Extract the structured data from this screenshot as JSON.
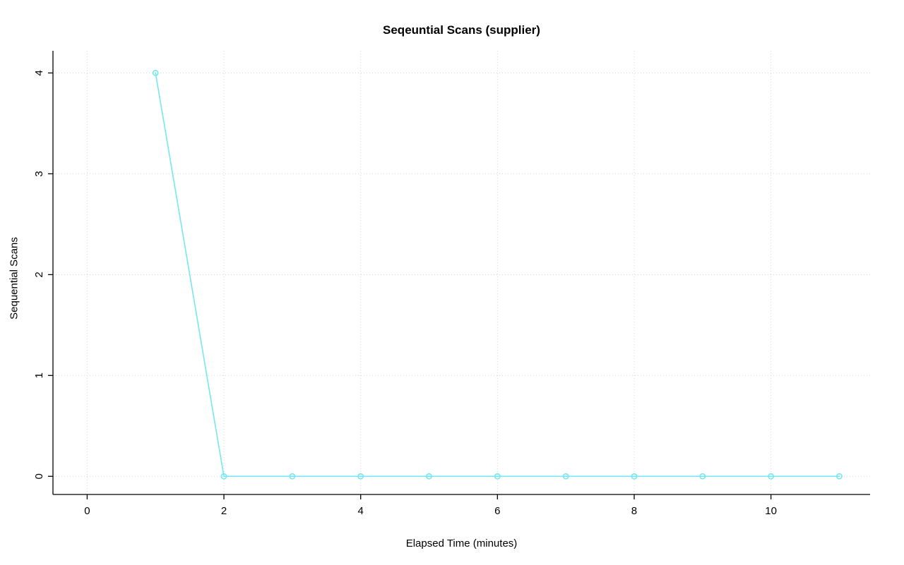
{
  "chart_data": {
    "type": "line",
    "title": "Seqeuntial Scans (supplier)",
    "xlabel": "Elapsed Time (minutes)",
    "ylabel": "Sequential Scans",
    "series": [
      {
        "name": "supplier",
        "x": [
          1,
          2,
          3,
          4,
          5,
          6,
          7,
          8,
          9,
          10,
          11
        ],
        "y": [
          4,
          0,
          0,
          0,
          0,
          0,
          0,
          0,
          0,
          0,
          0
        ]
      }
    ],
    "xticks": [
      0,
      2,
      4,
      6,
      8,
      10
    ],
    "yticks": [
      0,
      1,
      2,
      3,
      4
    ],
    "xlim": [
      -0.5,
      11.45
    ],
    "ylim": [
      -0.18,
      4.22
    ],
    "grid": true,
    "marker": "open-circle",
    "line_color": "#74e7ef",
    "grid_color": "#d4d4d4",
    "axis_color": "#000000",
    "background": "#ffffff"
  }
}
